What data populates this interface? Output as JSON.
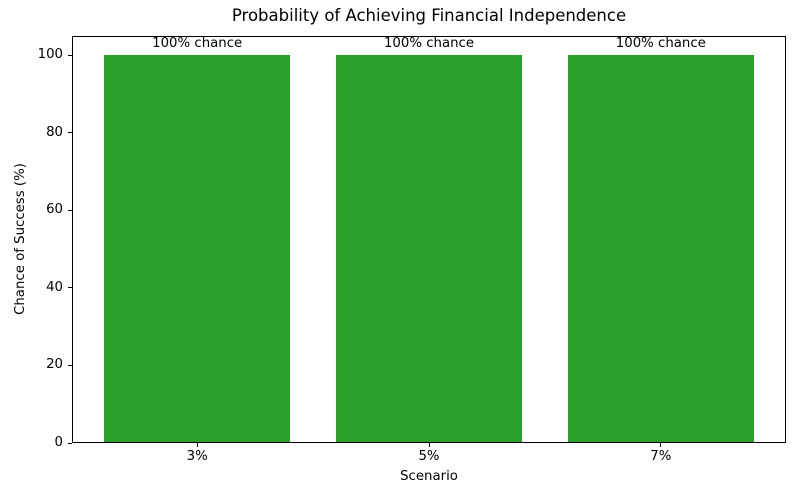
{
  "chart_data": {
    "type": "bar",
    "title": "Probability of Achieving Financial Independence",
    "xlabel": "Scenario",
    "ylabel": "Chance of Success (%)",
    "categories": [
      "3%",
      "5%",
      "7%"
    ],
    "values": [
      100,
      100,
      100
    ],
    "bar_labels": [
      "100% chance",
      "100% chance",
      "100% chance"
    ],
    "yticks": [
      0,
      20,
      40,
      60,
      80,
      100
    ],
    "ylim": [
      0,
      105
    ],
    "bar_color": "#2ca02c",
    "axis_color": "#000000",
    "background_color": "#ffffff",
    "grid": false,
    "legend": "none",
    "bar_width_fraction": 0.8
  }
}
